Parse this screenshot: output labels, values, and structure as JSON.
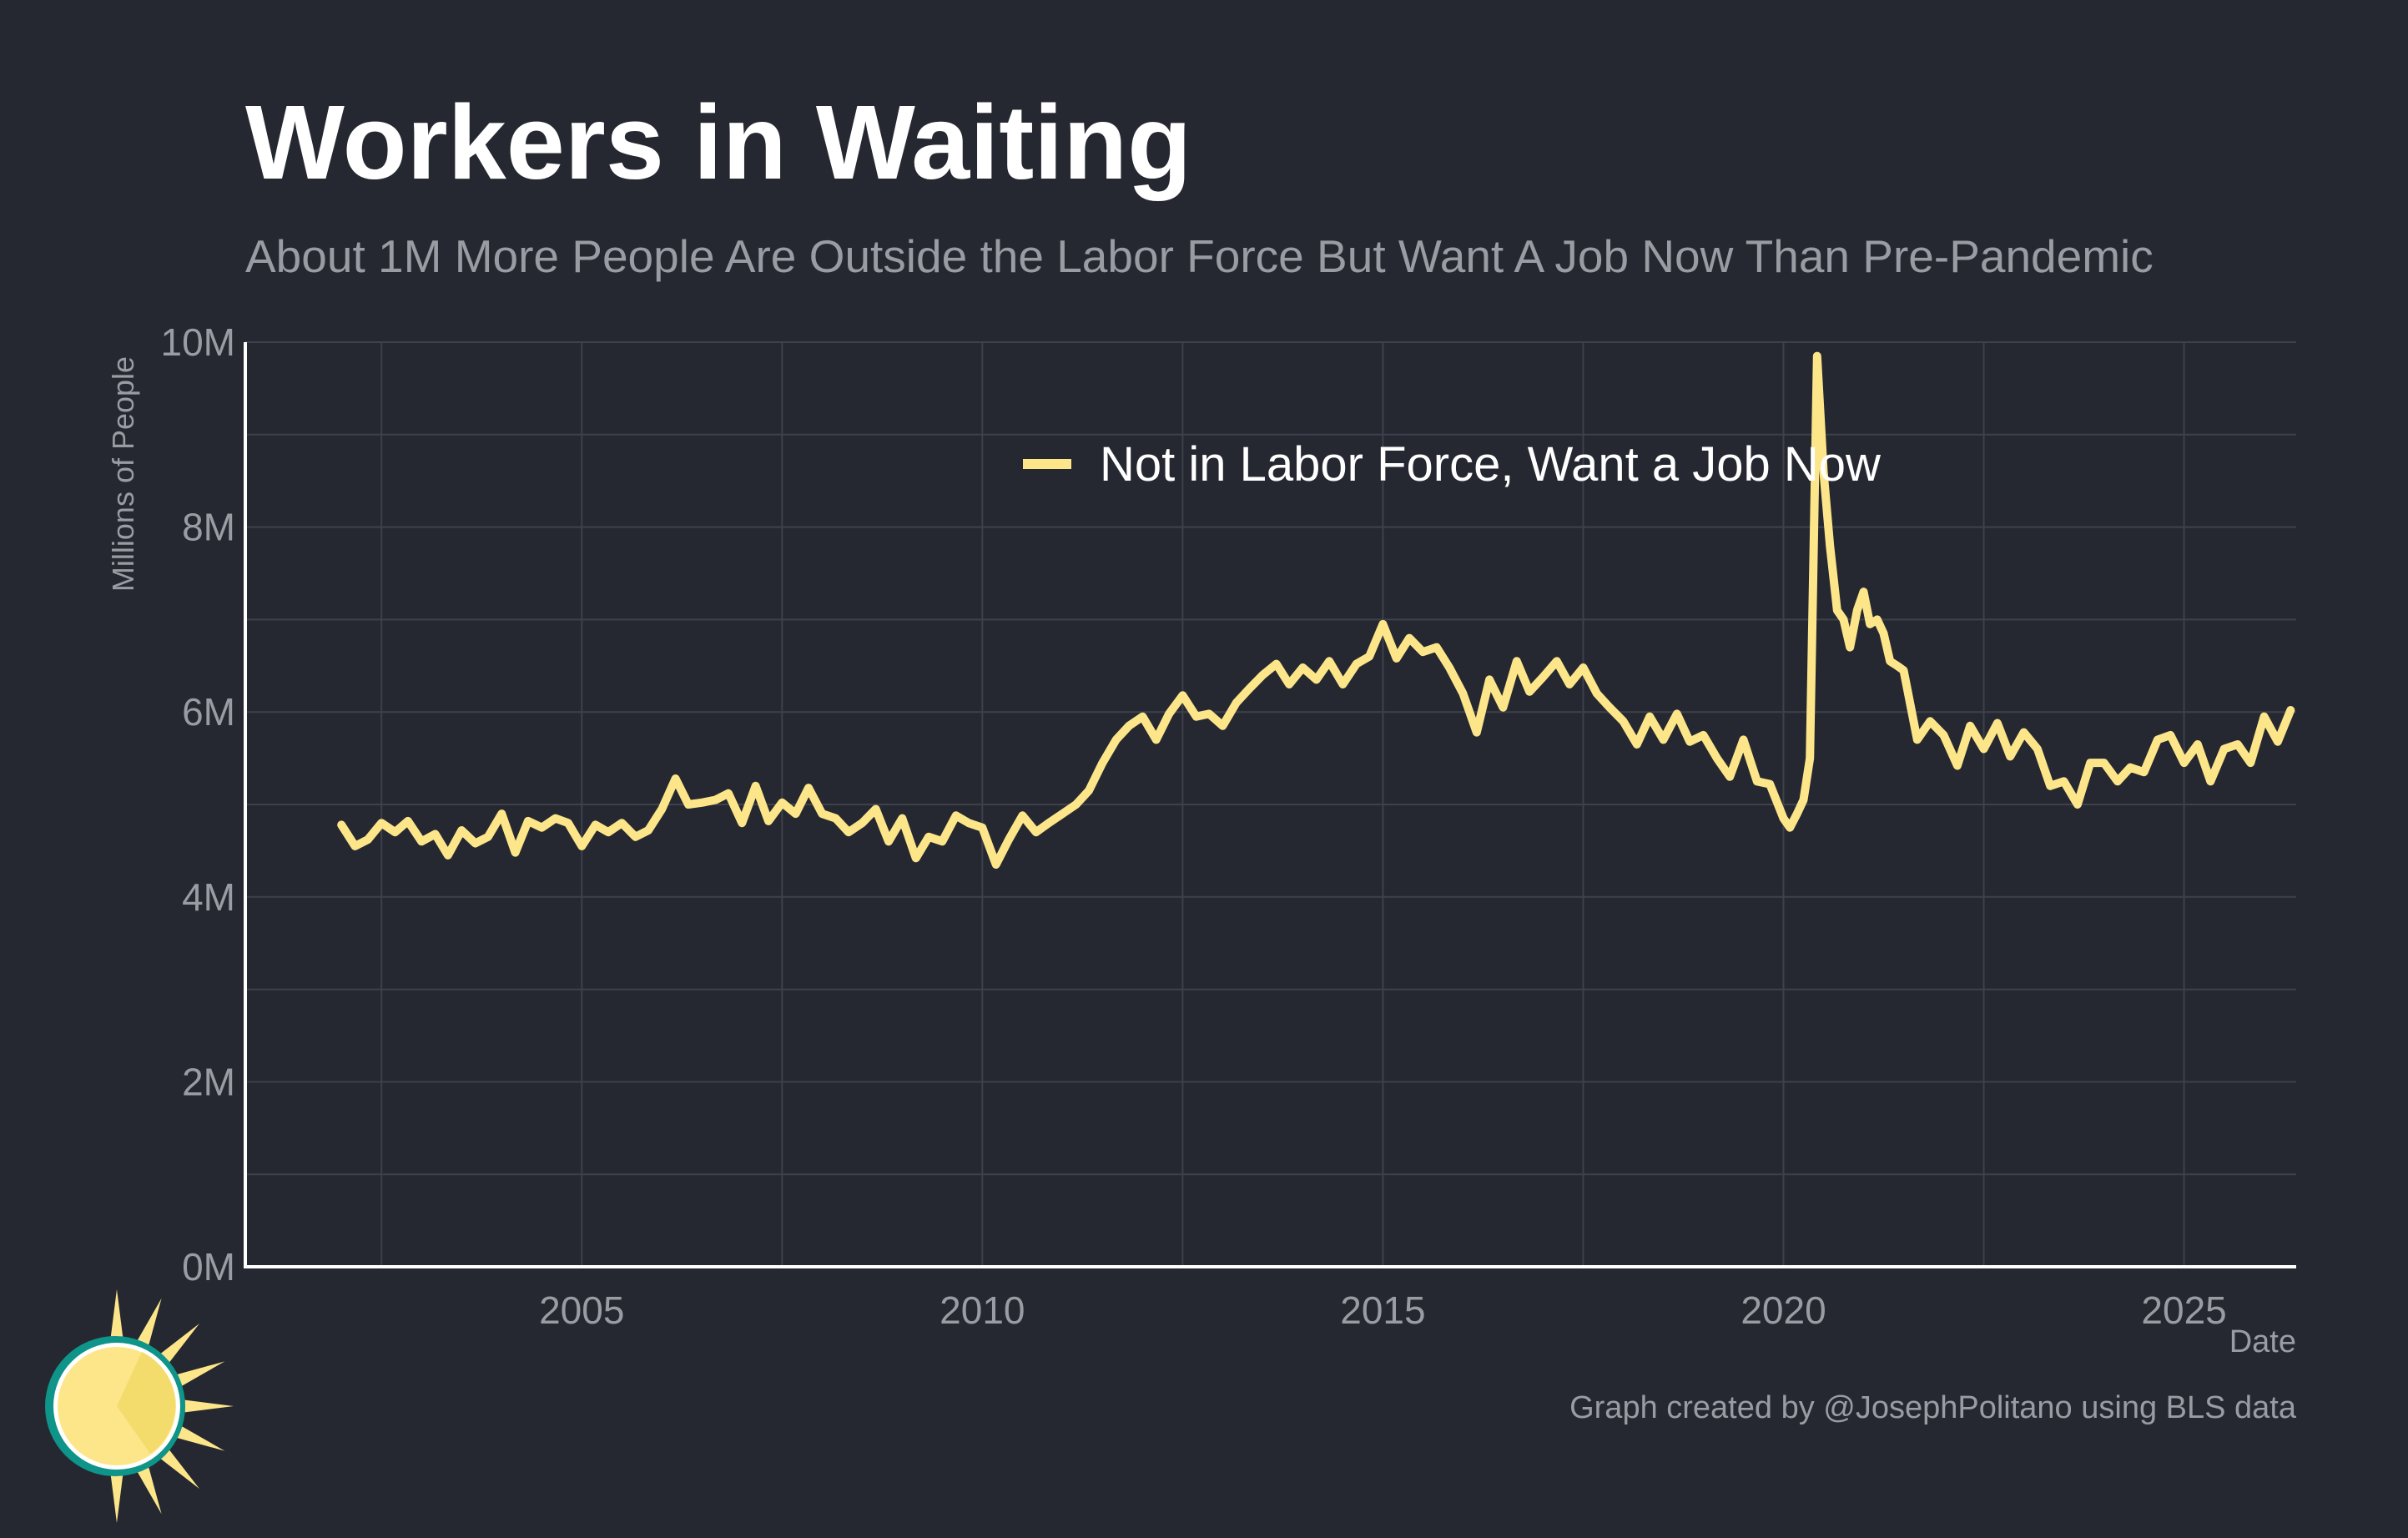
{
  "title": "Workers in Waiting",
  "subtitle": "About 1M More People Are Outside the Labor Force But Want A Job Now Than Pre-Pandemic",
  "caption": "Graph created by @JosephPolitano using BLS data",
  "colors": {
    "background": "#252831",
    "line": "#FDE68A",
    "logo_teal": "#0E9488",
    "logo_sun": "#FDE68A",
    "logo_sun_dark": "#F3DC6C"
  },
  "logo": {
    "icon": "sun-icon"
  },
  "chart_data": {
    "type": "line",
    "xlabel": "Date",
    "ylabel": "Millions of People",
    "xlim": [
      2000.8,
      2026.4
    ],
    "ylim": [
      0,
      10
    ],
    "x_ticks": [
      2005,
      2010,
      2015,
      2020,
      2025
    ],
    "y_ticks": [
      0,
      2,
      4,
      6,
      8,
      10
    ],
    "y_tick_labels": [
      "0M",
      "2M",
      "4M",
      "6M",
      "8M",
      "10M"
    ],
    "grid": true,
    "legend_position": "top-center",
    "series": [
      {
        "name": "Not in Labor Force, Want a Job Now",
        "color": "#FDE68A",
        "points": [
          [
            2002.0,
            4.78
          ],
          [
            2002.17,
            4.55
          ],
          [
            2002.33,
            4.62
          ],
          [
            2002.5,
            4.8
          ],
          [
            2002.67,
            4.7
          ],
          [
            2002.83,
            4.82
          ],
          [
            2003.0,
            4.6
          ],
          [
            2003.17,
            4.68
          ],
          [
            2003.33,
            4.45
          ],
          [
            2003.5,
            4.72
          ],
          [
            2003.67,
            4.58
          ],
          [
            2003.83,
            4.65
          ],
          [
            2004.0,
            4.9
          ],
          [
            2004.17,
            4.48
          ],
          [
            2004.33,
            4.82
          ],
          [
            2004.5,
            4.75
          ],
          [
            2004.67,
            4.85
          ],
          [
            2004.83,
            4.8
          ],
          [
            2005.0,
            4.55
          ],
          [
            2005.17,
            4.78
          ],
          [
            2005.33,
            4.7
          ],
          [
            2005.5,
            4.8
          ],
          [
            2005.67,
            4.65
          ],
          [
            2005.83,
            4.72
          ],
          [
            2006.0,
            4.95
          ],
          [
            2006.17,
            5.28
          ],
          [
            2006.33,
            5.0
          ],
          [
            2006.5,
            5.02
          ],
          [
            2006.67,
            5.05
          ],
          [
            2006.83,
            5.12
          ],
          [
            2007.0,
            4.8
          ],
          [
            2007.17,
            5.2
          ],
          [
            2007.33,
            4.82
          ],
          [
            2007.5,
            5.02
          ],
          [
            2007.67,
            4.9
          ],
          [
            2007.83,
            5.18
          ],
          [
            2008.0,
            4.9
          ],
          [
            2008.17,
            4.85
          ],
          [
            2008.33,
            4.7
          ],
          [
            2008.5,
            4.8
          ],
          [
            2008.67,
            4.95
          ],
          [
            2008.83,
            4.6
          ],
          [
            2009.0,
            4.85
          ],
          [
            2009.17,
            4.42
          ],
          [
            2009.33,
            4.65
          ],
          [
            2009.5,
            4.6
          ],
          [
            2009.67,
            4.88
          ],
          [
            2009.83,
            4.8
          ],
          [
            2010.0,
            4.75
          ],
          [
            2010.17,
            4.35
          ],
          [
            2010.33,
            4.62
          ],
          [
            2010.5,
            4.88
          ],
          [
            2010.67,
            4.7
          ],
          [
            2010.83,
            4.8
          ],
          [
            2011.0,
            4.9
          ],
          [
            2011.17,
            5.0
          ],
          [
            2011.33,
            5.15
          ],
          [
            2011.5,
            5.45
          ],
          [
            2011.67,
            5.7
          ],
          [
            2011.83,
            5.85
          ],
          [
            2012.0,
            5.95
          ],
          [
            2012.17,
            5.7
          ],
          [
            2012.33,
            5.98
          ],
          [
            2012.5,
            6.18
          ],
          [
            2012.67,
            5.95
          ],
          [
            2012.83,
            5.98
          ],
          [
            2013.0,
            5.85
          ],
          [
            2013.17,
            6.1
          ],
          [
            2013.33,
            6.25
          ],
          [
            2013.5,
            6.4
          ],
          [
            2013.67,
            6.52
          ],
          [
            2013.83,
            6.3
          ],
          [
            2014.0,
            6.48
          ],
          [
            2014.17,
            6.35
          ],
          [
            2014.33,
            6.55
          ],
          [
            2014.5,
            6.3
          ],
          [
            2014.67,
            6.52
          ],
          [
            2014.83,
            6.6
          ],
          [
            2015.0,
            6.95
          ],
          [
            2015.17,
            6.58
          ],
          [
            2015.33,
            6.8
          ],
          [
            2015.5,
            6.65
          ],
          [
            2015.67,
            6.7
          ],
          [
            2015.83,
            6.48
          ],
          [
            2016.0,
            6.2
          ],
          [
            2016.17,
            5.78
          ],
          [
            2016.33,
            6.35
          ],
          [
            2016.5,
            6.05
          ],
          [
            2016.67,
            6.55
          ],
          [
            2016.83,
            6.22
          ],
          [
            2017.0,
            6.38
          ],
          [
            2017.17,
            6.55
          ],
          [
            2017.33,
            6.3
          ],
          [
            2017.5,
            6.48
          ],
          [
            2017.67,
            6.2
          ],
          [
            2017.83,
            6.05
          ],
          [
            2018.0,
            5.9
          ],
          [
            2018.17,
            5.65
          ],
          [
            2018.33,
            5.95
          ],
          [
            2018.5,
            5.7
          ],
          [
            2018.67,
            5.98
          ],
          [
            2018.83,
            5.68
          ],
          [
            2019.0,
            5.75
          ],
          [
            2019.17,
            5.5
          ],
          [
            2019.33,
            5.3
          ],
          [
            2019.5,
            5.7
          ],
          [
            2019.67,
            5.25
          ],
          [
            2019.83,
            5.22
          ],
          [
            2020.0,
            4.85
          ],
          [
            2020.08,
            4.75
          ],
          [
            2020.17,
            4.9
          ],
          [
            2020.25,
            5.05
          ],
          [
            2020.33,
            5.5
          ],
          [
            2020.42,
            9.85
          ],
          [
            2020.5,
            8.6
          ],
          [
            2020.58,
            7.8
          ],
          [
            2020.67,
            7.1
          ],
          [
            2020.75,
            7.0
          ],
          [
            2020.83,
            6.7
          ],
          [
            2020.92,
            7.1
          ],
          [
            2021.0,
            7.3
          ],
          [
            2021.08,
            6.95
          ],
          [
            2021.17,
            7.0
          ],
          [
            2021.25,
            6.85
          ],
          [
            2021.33,
            6.55
          ],
          [
            2021.42,
            6.5
          ],
          [
            2021.5,
            6.45
          ],
          [
            2021.67,
            5.7
          ],
          [
            2021.83,
            5.9
          ],
          [
            2022.0,
            5.75
          ],
          [
            2022.17,
            5.42
          ],
          [
            2022.33,
            5.85
          ],
          [
            2022.5,
            5.6
          ],
          [
            2022.67,
            5.88
          ],
          [
            2022.83,
            5.52
          ],
          [
            2023.0,
            5.78
          ],
          [
            2023.17,
            5.6
          ],
          [
            2023.33,
            5.2
          ],
          [
            2023.5,
            5.25
          ],
          [
            2023.67,
            5.0
          ],
          [
            2023.83,
            5.45
          ],
          [
            2024.0,
            5.45
          ],
          [
            2024.17,
            5.25
          ],
          [
            2024.33,
            5.4
          ],
          [
            2024.5,
            5.35
          ],
          [
            2024.67,
            5.7
          ],
          [
            2024.83,
            5.75
          ],
          [
            2025.0,
            5.45
          ],
          [
            2025.17,
            5.65
          ],
          [
            2025.33,
            5.25
          ],
          [
            2025.5,
            5.6
          ],
          [
            2025.67,
            5.65
          ],
          [
            2025.83,
            5.45
          ],
          [
            2026.0,
            5.95
          ],
          [
            2026.17,
            5.68
          ],
          [
            2026.33,
            6.02
          ]
        ]
      }
    ]
  }
}
